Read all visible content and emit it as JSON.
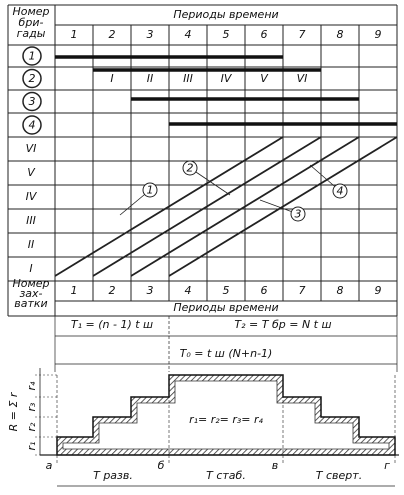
{
  "table": {
    "brigade_header": [
      "Номер",
      "бри-",
      "гады"
    ],
    "periods_header": "Периоды времени",
    "periods": [
      "1",
      "2",
      "3",
      "4",
      "5",
      "6",
      "7",
      "8",
      "9"
    ],
    "brigades": [
      "1",
      "2",
      "3",
      "4"
    ],
    "stage_labels": [
      "I",
      "II",
      "III",
      "IV",
      "V",
      "VI"
    ],
    "captures": [
      "VI",
      "V",
      "IV",
      "III",
      "II",
      "I"
    ],
    "capture_header": [
      "Номер",
      "зах-",
      "ватки"
    ],
    "line_labels": [
      "1",
      "2",
      "3",
      "4"
    ]
  },
  "durations": {
    "t1": "T₁ = (n - 1) t ш",
    "t2": "T₂ = T бр = N t ш",
    "t0": "T₀ = t ш (N+n-1)"
  },
  "resource_chart": {
    "axis_label": "R = Σ r",
    "levels": [
      "r₁",
      "r₂",
      "r₃",
      "r₄"
    ],
    "equality": "r₁= r₂= r₃= r₄",
    "points": [
      "а",
      "б",
      "в",
      "г"
    ],
    "phases": [
      "T разв.",
      "T стаб.",
      "T сверт."
    ]
  }
}
